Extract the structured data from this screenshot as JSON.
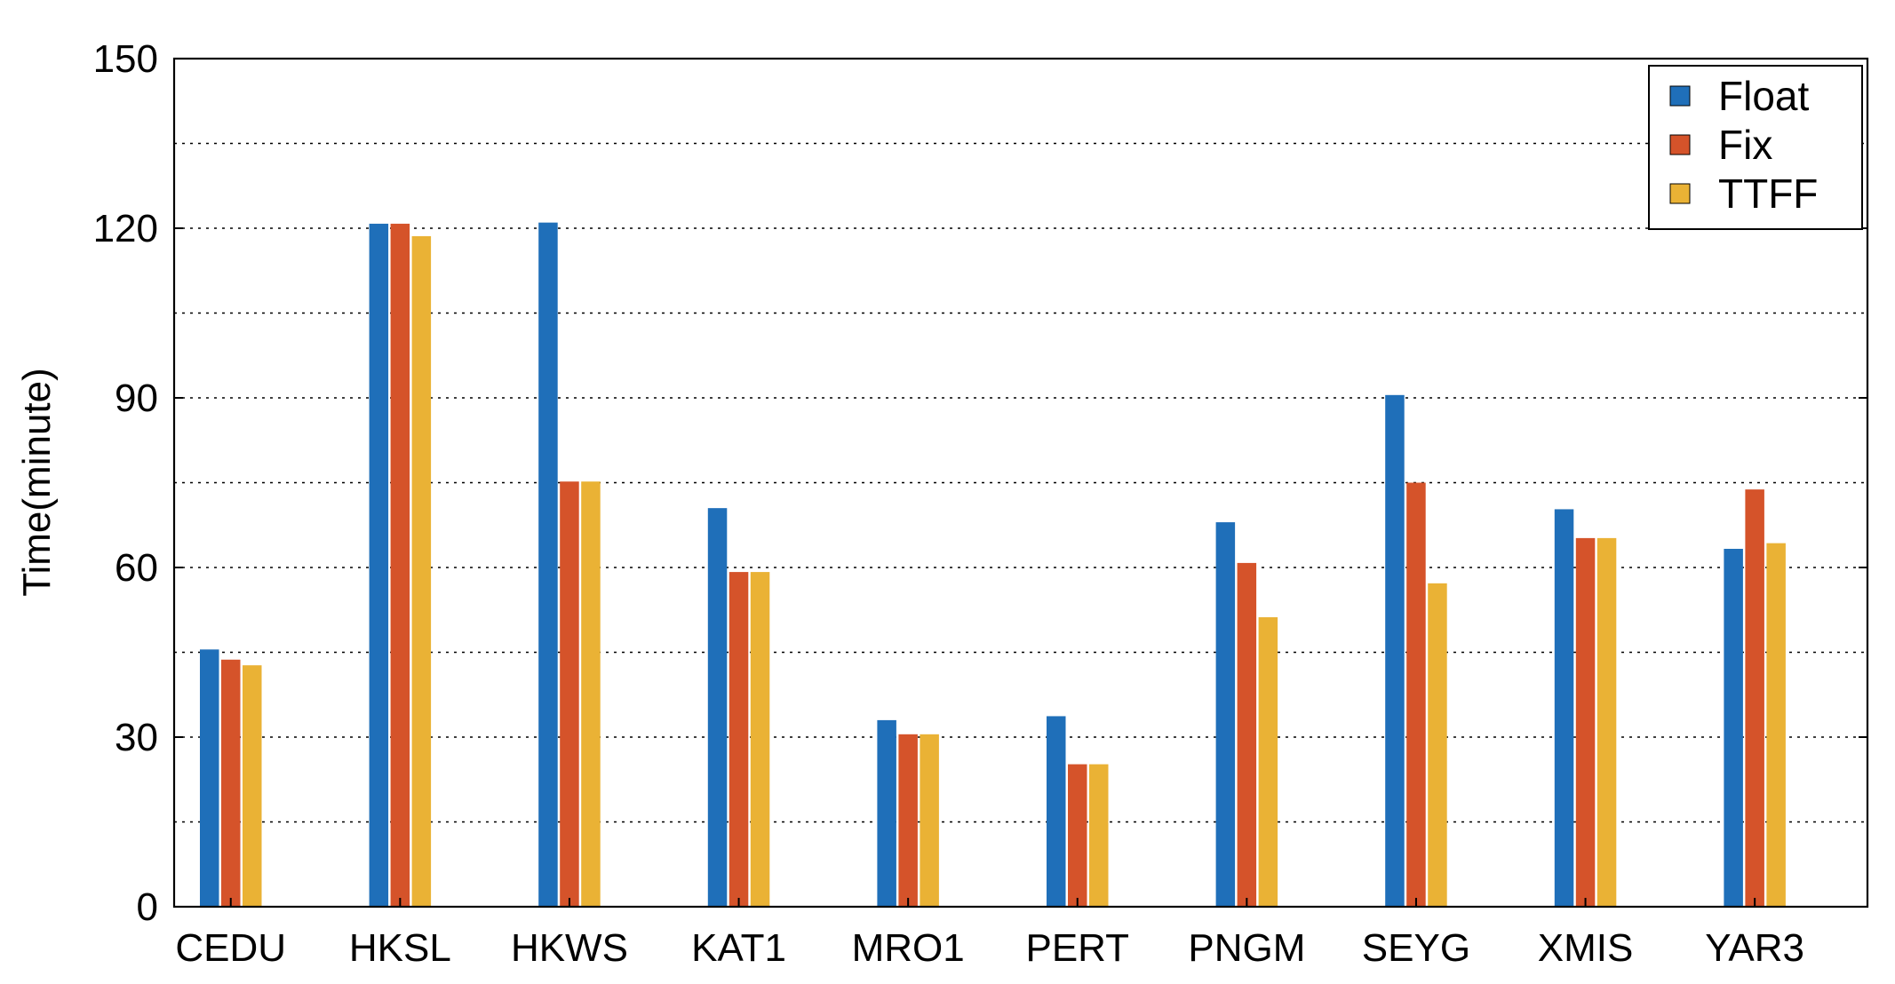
{
  "chart_data": {
    "type": "bar",
    "categories": [
      "CEDU",
      "HKSL",
      "HKWS",
      "KAT1",
      "MRO1",
      "PERT",
      "PNGM",
      "SEYG",
      "XMIS",
      "YAR3"
    ],
    "series": [
      {
        "name": "Float",
        "color": "#1f6fb9",
        "values": [
          45.5,
          120.8,
          121.0,
          70.5,
          33.0,
          33.7,
          68.0,
          90.5,
          70.3,
          63.3
        ]
      },
      {
        "name": "Fix",
        "color": "#d5532a",
        "values": [
          43.7,
          120.8,
          75.2,
          59.2,
          30.5,
          25.2,
          60.8,
          75.0,
          65.2,
          73.8
        ]
      },
      {
        "name": "TTFF",
        "color": "#eab235",
        "values": [
          42.7,
          118.6,
          75.2,
          59.2,
          30.5,
          25.2,
          51.2,
          57.2,
          65.2,
          64.3
        ]
      }
    ],
    "title": "",
    "xlabel": "",
    "ylabel": "Time(minute)",
    "ylim": [
      0,
      150
    ],
    "yticks": [
      0,
      30,
      60,
      90,
      120,
      150
    ],
    "grid": "horizontal dotted every 15",
    "legend_position": "top-right"
  }
}
